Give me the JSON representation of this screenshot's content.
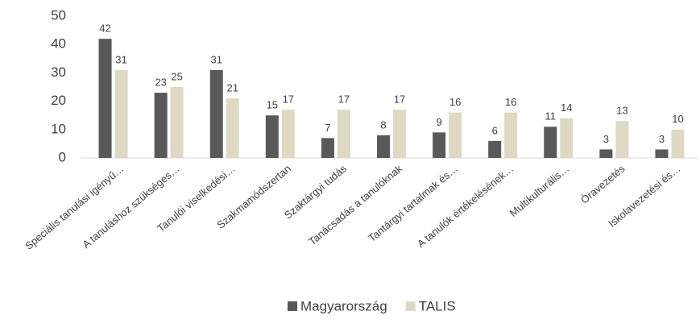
{
  "chart_data": {
    "type": "bar",
    "categories": [
      "Speciális tanulási igényű…",
      "A tanuláshoz szükséges…",
      "Tanulói viselkedési…",
      "Szakmamódszertan",
      "Szaktárgyi tudás",
      "Tanácsadás a tanulóknak",
      "Tantárgyi tartalmak és…",
      "A tanulók értékelésének…",
      "Multikulturális…",
      "Óravezetés",
      "Iskolavezetési és…"
    ],
    "series": [
      {
        "name": "Magyarország",
        "color": "#595959",
        "values": [
          42,
          23,
          31,
          15,
          7,
          8,
          9,
          6,
          11,
          3,
          3
        ]
      },
      {
        "name": "TALIS",
        "color": "#ddd9c3",
        "values": [
          31,
          25,
          21,
          17,
          17,
          17,
          16,
          16,
          14,
          13,
          10
        ]
      }
    ],
    "ylim": [
      0,
      50
    ],
    "yticks": [
      0,
      10,
      20,
      30,
      40,
      50
    ],
    "grid": false,
    "legend": "bottom"
  }
}
